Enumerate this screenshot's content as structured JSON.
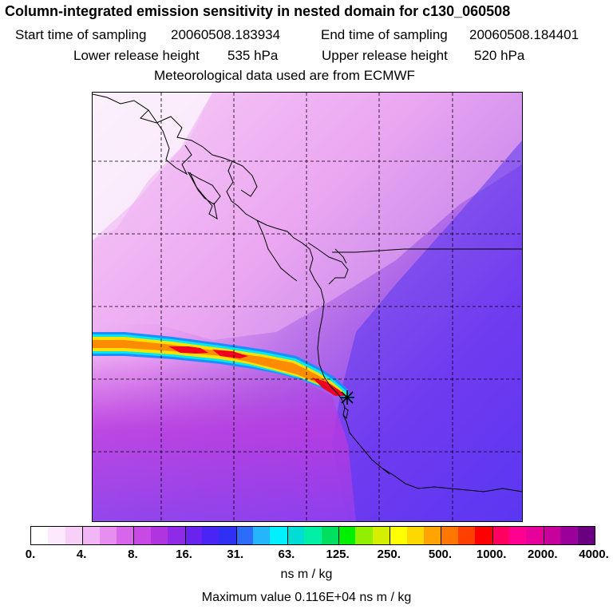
{
  "title": "Column-integrated emission sensitivity in nested domain for c130_060508",
  "sampling": {
    "start_label": "Start time of sampling",
    "start_value": "20060508.183934",
    "end_label": "End time of sampling",
    "end_value": "20060508.184401"
  },
  "release": {
    "lower_label": "Lower release height",
    "lower_value": "535 hPa",
    "upper_label": "Upper release height",
    "upper_value": "520 hPa"
  },
  "meteo": "Meteorological data used are from ECMWF",
  "colorbar": {
    "colors": [
      "#ffffff",
      "#fde9fd",
      "#f8cff9",
      "#f2b5f5",
      "#e68ff0",
      "#d866ea",
      "#c84ae4",
      "#b035de",
      "#8f2be6",
      "#6a22ee",
      "#4a24f4",
      "#3030f4",
      "#2c6cf8",
      "#25b5fb",
      "#00f0ff",
      "#00ddd4",
      "#00f0a8",
      "#00e060",
      "#00f000",
      "#90f000",
      "#d4f000",
      "#ffff00",
      "#ffd800",
      "#ffa400",
      "#ff7600",
      "#ff4000",
      "#ff0000",
      "#ff0060",
      "#ff0090",
      "#e8009a",
      "#c8009c",
      "#9c009a",
      "#6a0080"
    ],
    "ticks": [
      "0.",
      "4.",
      "8.",
      "16.",
      "31.",
      "63.",
      "125.",
      "250.",
      "500.",
      "1000.",
      "2000.",
      "4000."
    ],
    "units": "ns m / kg"
  },
  "max_value_text": "Maximum value  0.116E+04 ns m / kg",
  "plume_colors": {
    "outer": "#1e8cff",
    "cyan": "#00e8f0",
    "yellow": "#ffe000",
    "orange": "#ff8c00",
    "red": "#f00020"
  },
  "receptor_marker": "asterisk-marker"
}
